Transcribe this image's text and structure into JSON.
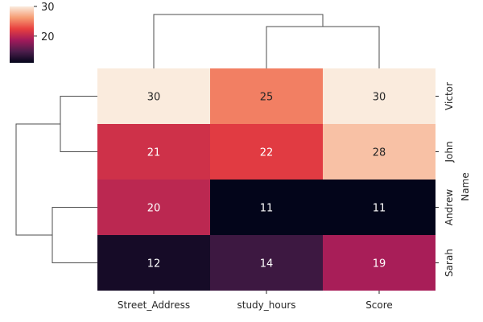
{
  "chart_data": {
    "type": "heatmap",
    "title": "",
    "rows": [
      "Victor",
      "John",
      "Andrew",
      "Sarah"
    ],
    "columns": [
      "Street_Address",
      "study_hours",
      "Score"
    ],
    "values": [
      [
        30,
        25,
        30
      ],
      [
        21,
        22,
        28
      ],
      [
        20,
        11,
        11
      ],
      [
        12,
        14,
        19
      ]
    ],
    "ylabel": "Name",
    "xlabel": "",
    "colorbar": {
      "range": [
        11,
        30
      ],
      "ticks": [
        "20",
        "30"
      ],
      "colormap": "rocket"
    },
    "row_dendrogram": true,
    "column_dendrogram": true
  },
  "colors": {
    "dark_text": "#262626",
    "light_text": "#ffffff",
    "dendrogram": "#4d4d4d",
    "colormap_stops": [
      "#03051a",
      "#4c1d4b",
      "#a11a5b",
      "#e83f3f",
      "#f69c73",
      "#faebdd"
    ]
  }
}
